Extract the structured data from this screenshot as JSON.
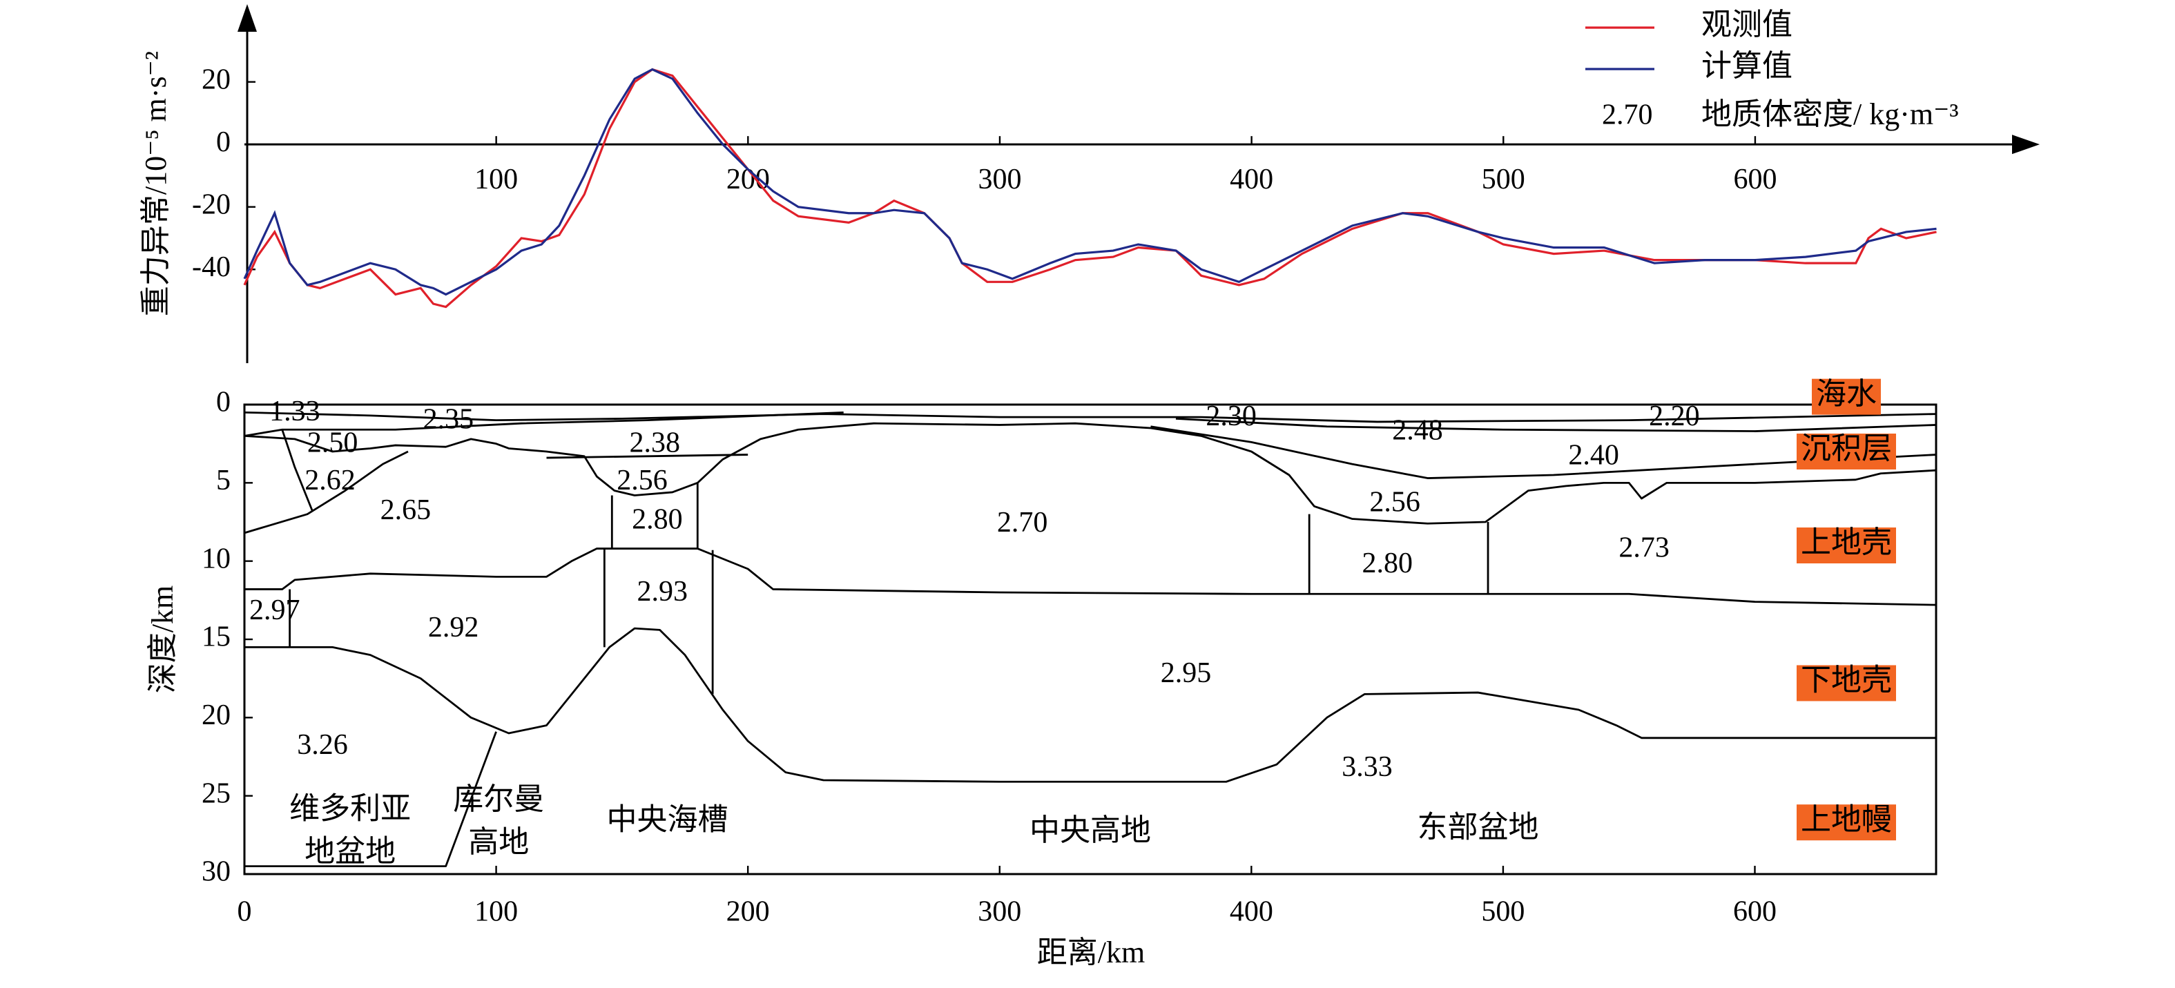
{
  "chart_data": [
    {
      "type": "line",
      "ylabel": "重力异常/10⁻⁵ m·s⁻²",
      "x": [
        0,
        5,
        12,
        18,
        25,
        30,
        40,
        50,
        60,
        70,
        75,
        80,
        90,
        100,
        110,
        118,
        125,
        135,
        145,
        155,
        162,
        170,
        180,
        190,
        200,
        210,
        220,
        240,
        250,
        258,
        270,
        280,
        285,
        295,
        305,
        320,
        330,
        345,
        355,
        370,
        380,
        395,
        405,
        420,
        440,
        460,
        470,
        490,
        500,
        520,
        540,
        560,
        580,
        600,
        620,
        640,
        645,
        650,
        660,
        672
      ],
      "series": [
        {
          "name": "观测值",
          "color": "#e0202a",
          "values": [
            -45,
            -36,
            -28,
            -38,
            -45,
            -46,
            -43,
            -40,
            -48,
            -46,
            -51,
            -52,
            -45,
            -39,
            -30,
            -31,
            -29,
            -16,
            5,
            20,
            24,
            22,
            12,
            2,
            -8,
            -18,
            -23,
            -25,
            -22,
            -18,
            -22,
            -30,
            -38,
            -44,
            -44,
            -40,
            -37,
            -36,
            -33,
            -34,
            -42,
            -45,
            -43,
            -35,
            -27,
            -22,
            -22,
            -28,
            -32,
            -35,
            -34,
            -37,
            -37,
            -37,
            -38,
            -38,
            -30,
            -27,
            -30,
            -28
          ]
        },
        {
          "name": "计算值",
          "color": "#1f2a8a",
          "values": [
            -43,
            -34,
            -22,
            -38,
            -45,
            -44,
            -41,
            -38,
            -40,
            -45,
            -46,
            -48,
            -44,
            -40,
            -34,
            -32,
            -26,
            -10,
            8,
            21,
            24,
            21,
            10,
            0,
            -8,
            -15,
            -20,
            -22,
            -22,
            -21,
            -22,
            -30,
            -38,
            -40,
            -43,
            -38,
            -35,
            -34,
            -32,
            -34,
            -40,
            -44,
            -40,
            -34,
            -26,
            -22,
            -23,
            -28,
            -30,
            -33,
            -33,
            -38,
            -37,
            -37,
            -36,
            -34,
            -31,
            -30,
            -28,
            -27
          ]
        }
      ],
      "density_note": {
        "sample": "2.70",
        "text": "地质体密度/ kg·m⁻³"
      },
      "xlim": [
        0,
        713
      ],
      "ylim": [
        -70,
        44
      ],
      "xticks": [
        100,
        200,
        300,
        400,
        500,
        600
      ],
      "yticks": [
        -40,
        -20,
        0,
        20
      ]
    },
    {
      "type": "section",
      "xlabel": "距离/km",
      "ylabel": "深度/km",
      "xlim": [
        0,
        672
      ],
      "ylim": [
        0,
        30
      ],
      "y_inverted": true,
      "xticks": [
        0,
        100,
        200,
        300,
        400,
        500,
        600
      ],
      "yticks": [
        0,
        5,
        10,
        15,
        20,
        25,
        30
      ],
      "line_color": "#000000",
      "boundaries": [
        {
          "x": [
            0,
            50,
            100,
            150,
            230,
            300,
            380,
            450,
            550,
            672
          ],
          "y": [
            0.5,
            0.7,
            1.0,
            0.9,
            0.6,
            0.8,
            0.8,
            1.1,
            1.0,
            0.6
          ]
        },
        {
          "x": [
            0,
            15,
            60,
            110,
            160,
            238
          ],
          "y": [
            2.0,
            1.6,
            1.6,
            1.2,
            1.0,
            0.5
          ]
        },
        {
          "x": [
            370,
            430,
            500,
            600,
            672
          ],
          "y": [
            0.9,
            1.4,
            1.6,
            1.7,
            1.3
          ]
        },
        {
          "x": [
            0,
            20,
            35,
            50,
            60,
            80,
            90,
            100,
            105,
            120,
            135,
            140,
            147,
            155,
            170,
            180,
            190,
            205,
            220,
            250,
            300,
            330,
            360,
            380,
            400,
            415,
            425,
            440,
            470,
            493,
            510,
            525,
            540,
            550,
            555,
            565,
            600,
            640,
            650,
            672
          ],
          "y": [
            2.0,
            2.2,
            3.0,
            2.8,
            2.6,
            2.7,
            2.2,
            2.5,
            2.8,
            3.0,
            3.3,
            4.6,
            5.5,
            5.8,
            5.6,
            5.0,
            3.5,
            2.2,
            1.6,
            1.2,
            1.3,
            1.2,
            1.5,
            2.0,
            3.0,
            4.5,
            6.5,
            7.3,
            7.6,
            7.5,
            5.5,
            5.2,
            5.0,
            5.0,
            6.0,
            5.0,
            5.0,
            4.8,
            4.4,
            4.2
          ]
        },
        {
          "x": [
            120,
            200
          ],
          "y": [
            3.4,
            3.2
          ]
        },
        {
          "x": [
            360,
            400,
            440,
            470,
            520,
            600,
            672
          ],
          "y": [
            1.4,
            2.4,
            3.8,
            4.7,
            4.5,
            3.8,
            3.2
          ]
        },
        {
          "x": [
            15,
            20,
            27
          ],
          "y": [
            1.6,
            4.0,
            6.8
          ]
        },
        {
          "x": [
            0,
            25,
            40,
            55,
            65
          ],
          "y": [
            8.2,
            7.0,
            5.5,
            3.8,
            3.0
          ]
        },
        {
          "x": [
            146,
            146
          ],
          "y": [
            5.8,
            9.2
          ]
        },
        {
          "x": [
            180,
            180
          ],
          "y": [
            5.0,
            9.2
          ]
        },
        {
          "x": [
            0,
            15,
            20,
            50,
            100,
            120,
            130,
            140,
            180,
            200,
            210,
            300,
            400,
            550,
            600,
            672
          ],
          "y": [
            11.8,
            11.8,
            11.2,
            10.8,
            11.0,
            11.0,
            10.0,
            9.2,
            9.2,
            10.5,
            11.8,
            12.0,
            12.1,
            12.1,
            12.6,
            12.8
          ]
        },
        {
          "x": [
            143,
            143
          ],
          "y": [
            9.2,
            15.5
          ]
        },
        {
          "x": [
            186,
            186
          ],
          "y": [
            9.3,
            18.5
          ]
        },
        {
          "x": [
            423,
            423
          ],
          "y": [
            7.0,
            12.1
          ]
        },
        {
          "x": [
            494,
            494
          ],
          "y": [
            7.5,
            12.1
          ]
        },
        {
          "x": [
            18,
            18
          ],
          "y": [
            11.8,
            15.5
          ]
        },
        {
          "x": [
            0,
            35,
            50,
            70,
            90,
            105,
            120,
            130,
            145,
            155,
            165,
            175,
            190,
            200,
            215,
            230,
            300,
            390,
            410,
            430,
            445,
            490,
            530,
            545,
            555,
            600,
            672
          ],
          "y": [
            15.5,
            15.5,
            16.0,
            17.5,
            20.0,
            21.0,
            20.5,
            18.5,
            15.5,
            14.3,
            14.4,
            16.0,
            19.5,
            21.5,
            23.5,
            24.0,
            24.1,
            24.1,
            23.0,
            20.0,
            18.5,
            18.4,
            19.5,
            20.5,
            21.3,
            21.3,
            21.3
          ]
        },
        {
          "x": [
            0,
            80,
            100
          ],
          "y": [
            29.5,
            29.5,
            20.9
          ]
        }
      ],
      "densities": [
        {
          "value": 1.33,
          "label": "1.33",
          "x": 20,
          "y": 0.6
        },
        {
          "value": 2.35,
          "label": "2.35",
          "x": 81,
          "y": 1.1
        },
        {
          "value": 2.5,
          "label": "2.50",
          "x": 35,
          "y": 2.6
        },
        {
          "value": 2.62,
          "label": "2.62",
          "x": 34,
          "y": 5.0
        },
        {
          "value": 2.65,
          "label": "2.65",
          "x": 64,
          "y": 6.9
        },
        {
          "value": 2.38,
          "label": "2.38",
          "x": 163,
          "y": 2.6
        },
        {
          "value": 2.56,
          "label": "2.56",
          "x": 158,
          "y": 5.0
        },
        {
          "value": 2.8,
          "label": "2.80",
          "x": 164,
          "y": 7.5
        },
        {
          "value": 2.7,
          "label": "2.70",
          "x": 309,
          "y": 7.7
        },
        {
          "value": 2.3,
          "label": "2.30",
          "x": 392,
          "y": 0.9
        },
        {
          "value": 2.48,
          "label": "2.48",
          "x": 466,
          "y": 1.8
        },
        {
          "value": 2.2,
          "label": "2.20",
          "x": 568,
          "y": 0.9
        },
        {
          "value": 2.4,
          "label": "2.40",
          "x": 536,
          "y": 3.4
        },
        {
          "value": 2.56,
          "label": "2.56",
          "x": 457,
          "y": 6.4
        },
        {
          "value": 2.8,
          "label": "2.80",
          "x": 454,
          "y": 10.3
        },
        {
          "value": 2.73,
          "label": "2.73",
          "x": 556,
          "y": 9.3
        },
        {
          "value": 2.97,
          "label": "2.97",
          "x": 12,
          "y": 13.3
        },
        {
          "value": 2.92,
          "label": "2.92",
          "x": 83,
          "y": 14.4
        },
        {
          "value": 2.93,
          "label": "2.93",
          "x": 166,
          "y": 12.1
        },
        {
          "value": 2.95,
          "label": "2.95",
          "x": 374,
          "y": 17.3
        },
        {
          "value": 3.26,
          "label": "3.26",
          "x": 31,
          "y": 21.9
        },
        {
          "value": 3.33,
          "label": "3.33",
          "x": 446,
          "y": 23.3
        }
      ],
      "regions": [
        {
          "lines": [
            "维多利亚",
            "地盆地"
          ],
          "x": 42,
          "y": 26.0
        },
        {
          "lines": [
            "库尔曼",
            "高地"
          ],
          "x": 101,
          "y": 25.4
        },
        {
          "lines": [
            "中央海槽"
          ],
          "x": 168,
          "y": 26.7
        },
        {
          "lines": [
            "中央高地"
          ],
          "x": 336,
          "y": 27.4
        },
        {
          "lines": [
            "东部盆地"
          ],
          "x": 490,
          "y": 27.2
        }
      ],
      "layer_color": "#f26522",
      "layers": [
        {
          "label": "海水",
          "y": -0.5
        },
        {
          "label": "沉积层",
          "y": 3.0
        },
        {
          "label": "上地壳",
          "y": 9.0
        },
        {
          "label": "下地壳",
          "y": 17.8
        },
        {
          "label": "上地幔",
          "y": 26.7
        }
      ]
    }
  ]
}
